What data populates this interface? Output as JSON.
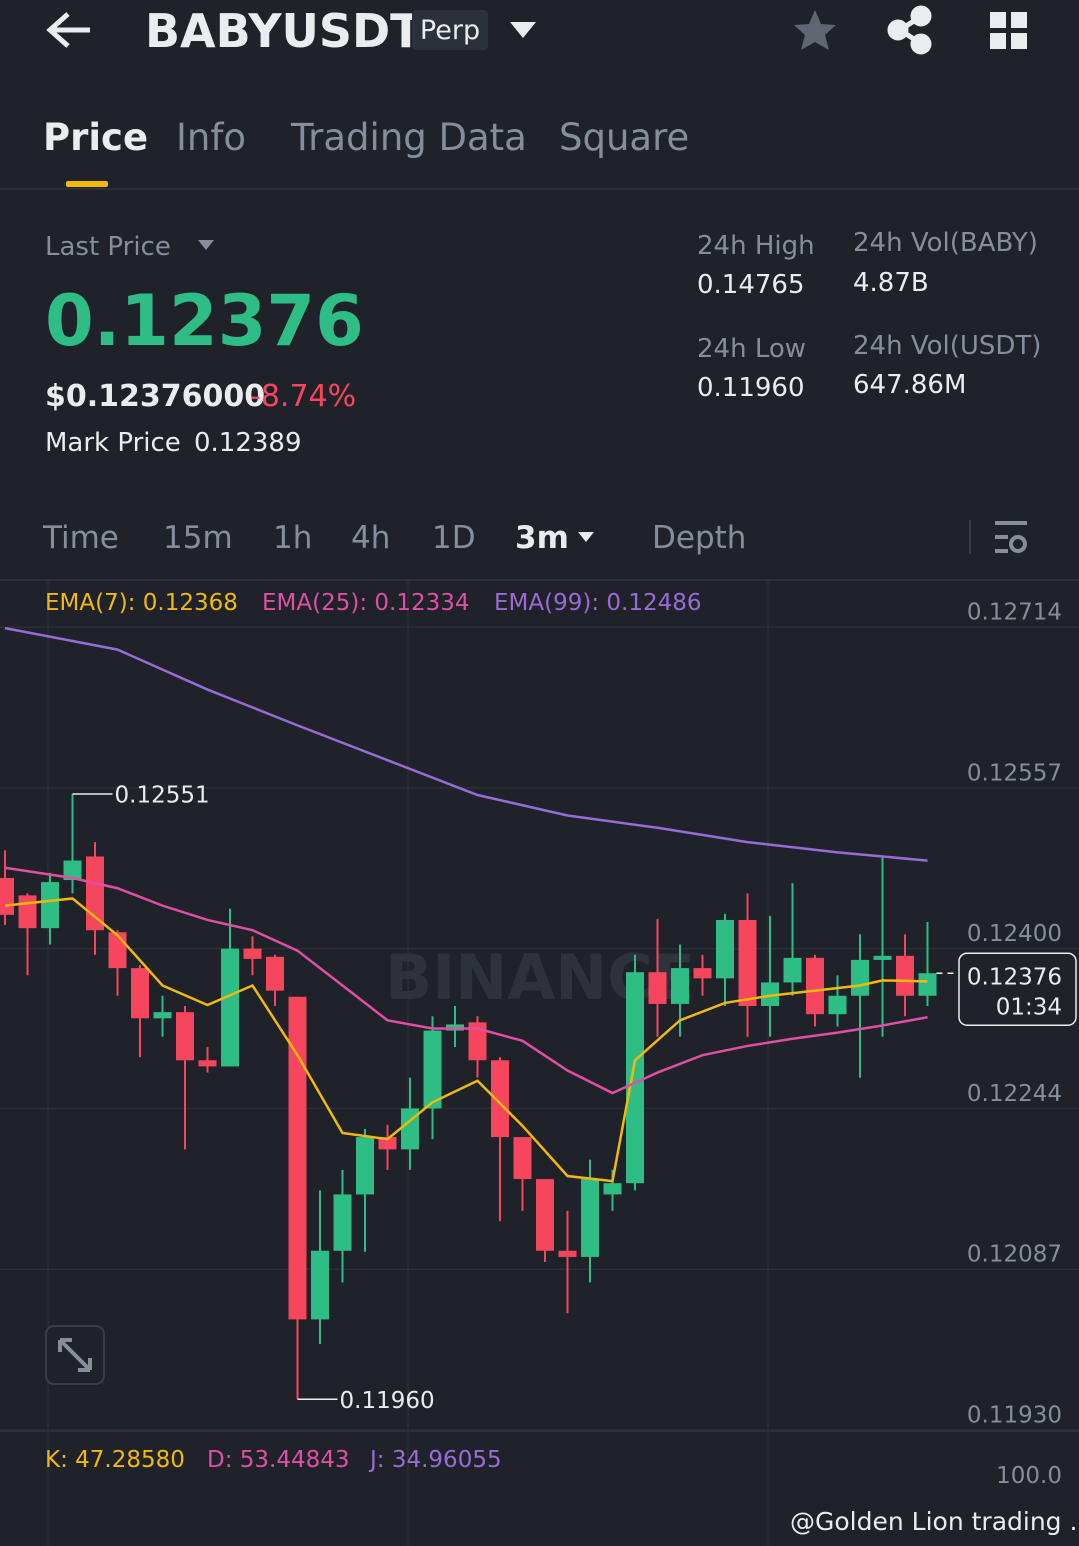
{
  "header": {
    "symbol": "BABYUSDT",
    "badge": "Perp"
  },
  "tabs": [
    "Price",
    "Info",
    "Trading Data",
    "Square"
  ],
  "ticker": {
    "last_price_label": "Last Price",
    "last_price": "0.12376",
    "usd_price": "$0.12376000",
    "change": "-8.74%",
    "mark_price_label": "Mark Price",
    "mark_price": "0.12389"
  },
  "stats": [
    {
      "label": "24h High",
      "value": "0.14765"
    },
    {
      "label": "24h Vol(BABY)",
      "value": "4.87B"
    },
    {
      "label": "24h Low",
      "value": "0.11960"
    },
    {
      "label": "24h Vol(USDT)",
      "value": "647.86M"
    }
  ],
  "intervals": [
    "Time",
    "15m",
    "1h",
    "4h",
    "1D",
    "3m",
    "Depth"
  ],
  "chart_data": {
    "type": "candlestick",
    "up_color": "#2ebd85",
    "down_color": "#f6465d",
    "open": [
      0.12469,
      0.12452,
      0.1242,
      0.12467,
      0.1249,
      0.12416,
      0.12381,
      0.12332,
      0.12338,
      0.12291,
      0.12285,
      0.124,
      0.12392,
      0.12353,
      0.12038,
      0.12105,
      0.1216,
      0.12216,
      0.12204,
      0.12244,
      0.1232,
      0.12328,
      0.12291,
      0.12216,
      0.12175,
      0.12105,
      0.12099,
      0.1216,
      0.12171,
      0.12377,
      0.12346,
      0.12381,
      0.12371,
      0.12428,
      0.12344,
      0.12367,
      0.12391,
      0.12336,
      0.12354,
      0.12389,
      0.12393,
      0.12354
    ],
    "high": [
      0.12496,
      0.12454,
      0.12474,
      0.12551,
      0.12504,
      0.12418,
      0.12384,
      0.12354,
      0.12344,
      0.12304,
      0.12439,
      0.12412,
      0.12394,
      0.12353,
      0.12164,
      0.12184,
      0.12224,
      0.12228,
      0.12274,
      0.12334,
      0.12344,
      0.12334,
      0.12294,
      0.12216,
      0.12175,
      0.12144,
      0.12194,
      0.12184,
      0.12394,
      0.12429,
      0.12404,
      0.12394,
      0.12434,
      0.12454,
      0.12432,
      0.12464,
      0.12394,
      0.12374,
      0.12414,
      0.12489,
      0.12414,
      0.12426
    ],
    "low": [
      0.12423,
      0.12374,
      0.12404,
      0.12454,
      0.12394,
      0.12354,
      0.12294,
      0.12314,
      0.12204,
      0.12279,
      0.12285,
      0.12374,
      0.12344,
      0.1196,
      0.12014,
      0.12074,
      0.12104,
      0.12184,
      0.12184,
      0.12214,
      0.12304,
      0.12274,
      0.12134,
      0.12144,
      0.12094,
      0.12044,
      0.12074,
      0.12144,
      0.12164,
      0.12314,
      0.12314,
      0.12354,
      0.12344,
      0.12314,
      0.12314,
      0.12354,
      0.12324,
      0.12324,
      0.12274,
      0.12314,
      0.12334,
      0.12344
    ],
    "close": [
      0.12433,
      0.1242,
      0.12465,
      0.12486,
      0.12418,
      0.12381,
      0.12332,
      0.12338,
      0.12291,
      0.12285,
      0.124,
      0.1239,
      0.12359,
      0.12038,
      0.12105,
      0.1216,
      0.12216,
      0.12204,
      0.12244,
      0.1232,
      0.12326,
      0.12291,
      0.12216,
      0.12175,
      0.12105,
      0.12099,
      0.12175,
      0.12171,
      0.12377,
      0.12346,
      0.12381,
      0.12371,
      0.12428,
      0.12344,
      0.12367,
      0.12391,
      0.12336,
      0.12354,
      0.12389,
      0.12393,
      0.12354,
      0.12376
    ],
    "series": [
      {
        "name": "EMA(7): 0.12368",
        "color": "#f0b90b",
        "x": [
          0,
          3,
          5,
          7,
          9,
          11,
          13,
          15,
          17,
          19,
          21,
          23,
          25,
          27,
          28,
          30,
          32,
          34,
          36,
          38,
          39,
          41
        ],
        "values": [
          0.12442,
          0.12449,
          0.12413,
          0.12364,
          0.12345,
          0.12364,
          0.12296,
          0.1222,
          0.12214,
          0.1225,
          0.12271,
          0.12227,
          0.12178,
          0.12173,
          0.12291,
          0.1233,
          0.12347,
          0.12354,
          0.12359,
          0.12364,
          0.12369,
          0.12368
        ]
      },
      {
        "name": "EMA(25): 0.12334",
        "color": "#e04fa5",
        "x": [
          0,
          3,
          5,
          7,
          9,
          11,
          13,
          15,
          17,
          19,
          21,
          23,
          25,
          27,
          29,
          31,
          33,
          35,
          37,
          39,
          41
        ],
        "values": [
          0.12479,
          0.12469,
          0.12459,
          0.12442,
          0.12428,
          0.12418,
          0.12398,
          0.12364,
          0.1233,
          0.12322,
          0.12322,
          0.1231,
          0.12281,
          0.12259,
          0.12279,
          0.12296,
          0.12305,
          0.12312,
          0.12318,
          0.12325,
          0.12333
        ]
      },
      {
        "name": "EMA(99): 0.12486",
        "color": "#9a6bd8",
        "x": [
          0,
          5,
          9,
          13,
          17,
          21,
          25,
          27,
          29,
          33,
          37,
          41
        ],
        "values": [
          0.12713,
          0.12692,
          0.12653,
          0.12618,
          0.12584,
          0.1255,
          0.1253,
          0.12524,
          0.12518,
          0.12504,
          0.12494,
          0.12486
        ]
      }
    ],
    "ylim": [
      0.1193,
      0.12758
    ],
    "yticks": [
      0.12714,
      0.12557,
      {
        "value": 0.124,
        "label": "0.12400"
      },
      0.12244,
      0.12087,
      {
        "value": 0.1193,
        "label": "0.11930"
      }
    ],
    "grid": true,
    "high_label": "0.12551",
    "low_label": "0.11960",
    "price_tag": "0.12376",
    "countdown": "01:34",
    "watermark": "BINANCE"
  },
  "kdj": {
    "labels": [
      "K: 47.28580",
      "D: 53.44843",
      "J: 34.96055"
    ],
    "tick": "100.0"
  },
  "credit": "@Golden Lion trading ..."
}
